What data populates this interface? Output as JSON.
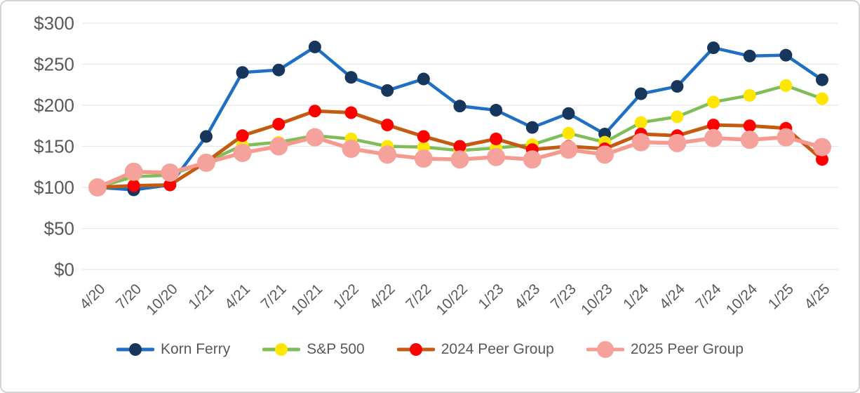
{
  "chart_data": {
    "type": "line",
    "title": "",
    "xlabel": "",
    "ylabel": "",
    "categories": [
      "4/20",
      "7/20",
      "10/20",
      "1/21",
      "4/21",
      "7/21",
      "10/21",
      "1/22",
      "4/22",
      "7/22",
      "10/22",
      "1/23",
      "4/23",
      "7/23",
      "10/23",
      "1/24",
      "4/24",
      "7/24",
      "10/24",
      "1/25",
      "4/25"
    ],
    "series": [
      {
        "name": "Korn Ferry",
        "line_color": "#1F6FC5",
        "line_width": 4.5,
        "marker_color": "#16365C",
        "marker_radius": 9,
        "values": [
          100,
          97,
          103,
          162,
          240,
          243,
          271,
          234,
          218,
          232,
          199,
          194,
          173,
          190,
          165,
          214,
          223,
          270,
          260,
          261,
          231
        ]
      },
      {
        "name": "S&P 500",
        "line_color": "#7EBD57",
        "line_width": 4.5,
        "marker_color": "#FFE600",
        "marker_radius": 9,
        "values": [
          100,
          113,
          115,
          131,
          151,
          155,
          163,
          159,
          150,
          149,
          145,
          148,
          152,
          166,
          155,
          179,
          186,
          204,
          212,
          224,
          208
        ]
      },
      {
        "name": "2024 Peer Group",
        "line_color": "#C55A11",
        "line_width": 5,
        "marker_color": "#FE0000",
        "marker_radius": 9,
        "values": [
          100,
          102,
          103,
          131,
          163,
          177,
          193,
          191,
          176,
          162,
          150,
          159,
          146,
          150,
          147,
          165,
          163,
          176,
          175,
          172,
          134
        ]
      },
      {
        "name": "2025 Peer Group",
        "line_color": "#F6998F",
        "line_width": 5.5,
        "marker_color": "#F4A29B",
        "marker_radius": 13,
        "values": [
          100,
          119,
          118,
          130,
          142,
          150,
          161,
          147,
          140,
          135,
          134,
          137,
          134,
          146,
          140,
          155,
          154,
          160,
          158,
          161,
          149
        ]
      }
    ],
    "y_axis": {
      "min": 0,
      "max": 300,
      "step": 50,
      "prefix": "$",
      "tick_labels": [
        "$0",
        "$50",
        "$100",
        "$150",
        "$200",
        "$250",
        "$300"
      ]
    },
    "grid": true,
    "legend_position": "bottom"
  },
  "styles": {
    "grid_color": "#E7E7E7",
    "axis_text_color": "#595959",
    "legend_text_color": "#595959",
    "background_color": "#FFFFFF",
    "border_color": "#D4D4D4"
  }
}
